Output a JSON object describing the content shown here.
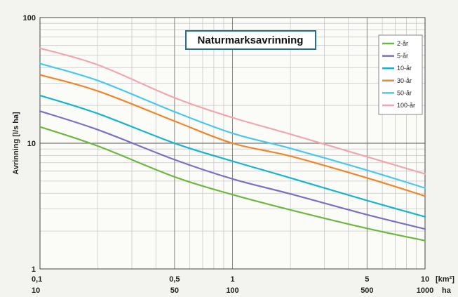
{
  "chart_data": {
    "type": "line",
    "title": "Naturmarksavrinning",
    "ylabel": "Avrinning [l/s ha]",
    "x_unit_label": "[km²]",
    "x2_unit_label": "ha",
    "x_scale": "log",
    "y_scale": "log",
    "xlim": [
      0.1,
      10
    ],
    "ylim": [
      1,
      100
    ],
    "grid": true,
    "legend_position": "top-right",
    "x_ticks": [
      {
        "value": 0.1,
        "label": "0,1",
        "label2": "10"
      },
      {
        "value": 0.5,
        "label": "0,5",
        "label2": "50"
      },
      {
        "value": 1,
        "label": "1",
        "label2": "100"
      },
      {
        "value": 5,
        "label": "5",
        "label2": "500"
      },
      {
        "value": 10,
        "label": "10",
        "label2": "1000"
      }
    ],
    "y_ticks": [
      {
        "value": 100,
        "label": "100"
      },
      {
        "value": 10,
        "label": "10"
      },
      {
        "value": 1,
        "label": "1"
      }
    ],
    "x": [
      0.1,
      0.2,
      0.5,
      1,
      2,
      5,
      10
    ],
    "series": [
      {
        "name": "2-år",
        "color": "#6cb83f",
        "values": [
          13.5,
          9.5,
          5.4,
          3.9,
          2.95,
          2.1,
          1.68
        ]
      },
      {
        "name": "5-år",
        "color": "#7a70c4",
        "values": [
          18,
          12.8,
          7.4,
          5.2,
          3.95,
          2.7,
          2.08
        ]
      },
      {
        "name": "10-år",
        "color": "#18b4cf",
        "values": [
          24,
          17.2,
          10,
          7.2,
          5.3,
          3.5,
          2.6
        ]
      },
      {
        "name": "30-år",
        "color": "#f0862a",
        "values": [
          35,
          26,
          15,
          10,
          7.9,
          5.3,
          3.8
        ]
      },
      {
        "name": "50-år",
        "color": "#48c8ee",
        "values": [
          43,
          31.5,
          17.8,
          12,
          9.1,
          6.1,
          4.4
        ]
      },
      {
        "name": "100-år",
        "color": "#f2a6ae",
        "values": [
          57,
          42,
          23,
          16,
          11.8,
          7.8,
          5.7
        ]
      }
    ]
  }
}
